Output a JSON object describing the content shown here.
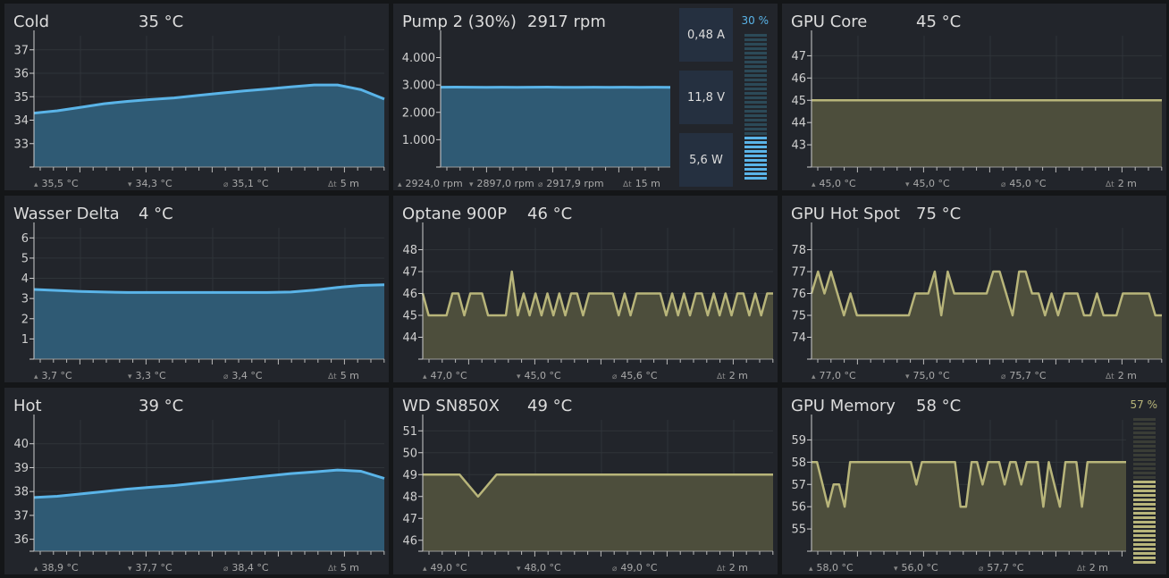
{
  "panels": [
    {
      "title": "Cold",
      "value": "35 °C",
      "theme": "blue",
      "footer": {
        "max": "35,5 °C",
        "min": "34,3 °C",
        "avg": "35,1 °C",
        "duration": "5 m"
      }
    },
    {
      "title": "Pump 2 (30%)",
      "value": "2917 rpm",
      "theme": "blue",
      "footer": {
        "max": "2924,0 rpm",
        "min": "2897,0 rpm",
        "avg": "2917,9 rpm",
        "duration": "15 m"
      },
      "readouts": [
        "0,48 A",
        "11,8 V",
        "5,6 W"
      ],
      "level": {
        "label": "30 %",
        "percent": 30
      }
    },
    {
      "title": "GPU Core",
      "value": "45 °C",
      "theme": "olive",
      "footer": {
        "max": "45,0 °C",
        "min": "45,0 °C",
        "avg": "45,0 °C",
        "duration": "2 m"
      }
    },
    {
      "title": "Wasser Delta",
      "value": "4 °C",
      "theme": "blue",
      "footer": {
        "max": "3,7 °C",
        "min": "3,3 °C",
        "avg": "3,4 °C",
        "duration": "5 m"
      }
    },
    {
      "title": "Optane 900P",
      "value": "46 °C",
      "theme": "olive",
      "footer": {
        "max": "47,0 °C",
        "min": "45,0 °C",
        "avg": "45,6 °C",
        "duration": "2 m"
      }
    },
    {
      "title": "GPU Hot Spot",
      "value": "75 °C",
      "theme": "olive",
      "footer": {
        "max": "77,0 °C",
        "min": "75,0 °C",
        "avg": "75,7 °C",
        "duration": "2 m"
      }
    },
    {
      "title": "Hot",
      "value": "39 °C",
      "theme": "blue",
      "footer": {
        "max": "38,9 °C",
        "min": "37,7 °C",
        "avg": "38,4 °C",
        "duration": "5 m"
      }
    },
    {
      "title": "WD SN850X",
      "value": "49 °C",
      "theme": "olive",
      "footer": {
        "max": "49,0 °C",
        "min": "48,0 °C",
        "avg": "49,0 °C",
        "duration": "2 m"
      }
    },
    {
      "title": "GPU Memory",
      "value": "58 °C",
      "theme": "olive",
      "footer": {
        "max": "58,0 °C",
        "min": "56,0 °C",
        "avg": "57,7 °C",
        "duration": "2 m"
      },
      "level": {
        "label": "57 %",
        "percent": 57
      }
    }
  ],
  "themes": {
    "blue": {
      "line": "#5ab4e8",
      "fill": "#2f5a74",
      "text": "#5ab4e8",
      "bar_off": "#2c4a58"
    },
    "olive": {
      "line": "#b8b57a",
      "fill": "#4d4e3c",
      "text": "#b8b57a",
      "bar_off": "#3a3d36"
    }
  },
  "chart_data": [
    {
      "type": "area",
      "ylim": [
        32,
        37.6
      ],
      "yticks": [
        33,
        34,
        35,
        36,
        37
      ],
      "grid": true,
      "values": [
        34.3,
        34.4,
        34.55,
        34.7,
        34.8,
        34.88,
        34.95,
        35.05,
        35.15,
        35.25,
        35.33,
        35.42,
        35.5,
        35.5,
        35.3,
        34.9
      ]
    },
    {
      "type": "area",
      "ylim": [
        0,
        4800
      ],
      "yticks": [
        1000,
        2000,
        3000,
        4000
      ],
      "ytick_labels": [
        "1.000",
        "2.000",
        "3.000",
        "4.000"
      ],
      "grid": false,
      "values": [
        2920,
        2924,
        2918,
        2917,
        2920,
        2915,
        2918,
        2921,
        2917,
        2914,
        2919,
        2917,
        2920,
        2916,
        2918,
        2917
      ]
    },
    {
      "type": "area",
      "ylim": [
        42,
        47.9
      ],
      "yticks": [
        43,
        44,
        45,
        46,
        47
      ],
      "grid": true,
      "values": [
        45,
        45,
        45,
        45,
        45,
        45,
        45,
        45,
        45,
        45
      ]
    },
    {
      "type": "area",
      "ylim": [
        0,
        6.5
      ],
      "yticks": [
        1,
        2,
        3,
        4,
        5,
        6
      ],
      "grid": true,
      "values": [
        3.45,
        3.4,
        3.35,
        3.32,
        3.3,
        3.3,
        3.3,
        3.3,
        3.3,
        3.3,
        3.3,
        3.32,
        3.42,
        3.55,
        3.65,
        3.68
      ]
    },
    {
      "type": "area",
      "ylim": [
        43,
        49
      ],
      "yticks": [
        44,
        45,
        46,
        47,
        48
      ],
      "grid": true,
      "values": [
        46,
        45,
        45,
        45,
        45,
        46,
        46,
        45,
        46,
        46,
        46,
        45,
        45,
        45,
        45,
        47,
        45,
        46,
        45,
        46,
        45,
        46,
        45,
        46,
        45,
        46,
        46,
        45,
        46,
        46,
        46,
        46,
        46,
        45,
        46,
        45,
        46,
        46,
        46,
        46,
        46,
        45,
        46,
        45,
        46,
        45,
        46,
        46,
        45,
        46,
        45,
        46,
        45,
        46,
        46,
        45,
        46,
        45,
        46,
        46
      ]
    },
    {
      "type": "area",
      "ylim": [
        73,
        79
      ],
      "yticks": [
        74,
        75,
        76,
        77,
        78
      ],
      "grid": true,
      "values": [
        76,
        77,
        76,
        77,
        76,
        75,
        76,
        75,
        75,
        75,
        75,
        75,
        75,
        75,
        75,
        75,
        76,
        76,
        76,
        77,
        75,
        77,
        76,
        76,
        76,
        76,
        76,
        76,
        77,
        77,
        76,
        75,
        77,
        77,
        76,
        76,
        75,
        76,
        75,
        76,
        76,
        76,
        75,
        75,
        76,
        75,
        75,
        75,
        76,
        76,
        76,
        76,
        76,
        75,
        75
      ]
    },
    {
      "type": "area",
      "ylim": [
        35.5,
        41
      ],
      "yticks": [
        36,
        37,
        38,
        39,
        40
      ],
      "grid": true,
      "values": [
        37.75,
        37.8,
        37.9,
        38.0,
        38.1,
        38.18,
        38.25,
        38.35,
        38.45,
        38.55,
        38.65,
        38.75,
        38.82,
        38.9,
        38.85,
        38.55
      ]
    },
    {
      "type": "area",
      "ylim": [
        45.5,
        51.5
      ],
      "yticks": [
        46,
        47,
        48,
        49,
        50,
        51
      ],
      "grid": true,
      "values": [
        49,
        49,
        49,
        48,
        49,
        49,
        49,
        49,
        49,
        49,
        49,
        49,
        49,
        49,
        49,
        49,
        49,
        49,
        49,
        49
      ]
    },
    {
      "type": "area",
      "ylim": [
        54,
        59.9
      ],
      "yticks": [
        55,
        56,
        57,
        58,
        59
      ],
      "grid": true,
      "values": [
        58,
        58,
        57,
        56,
        57,
        57,
        56,
        58,
        58,
        58,
        58,
        58,
        58,
        58,
        58,
        58,
        58,
        58,
        58,
        57,
        58,
        58,
        58,
        58,
        58,
        58,
        58,
        56,
        56,
        58,
        58,
        57,
        58,
        58,
        58,
        57,
        58,
        58,
        57,
        58,
        58,
        58,
        56,
        58,
        57,
        56,
        58,
        58,
        58,
        56,
        58,
        58,
        58,
        58,
        58,
        58,
        58,
        58
      ]
    }
  ]
}
